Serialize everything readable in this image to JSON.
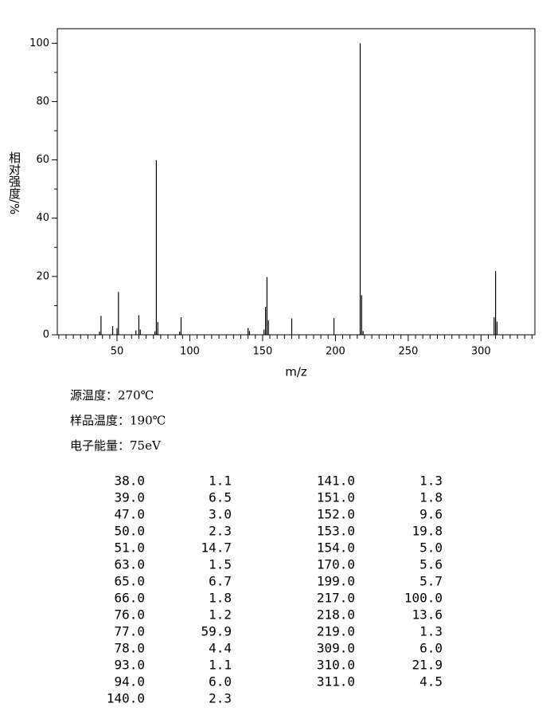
{
  "chart_data": {
    "type": "stick",
    "x_label": "m/z",
    "y_label": "相对强度/%",
    "x": [
      38,
      39,
      47,
      50,
      51,
      63,
      65,
      66,
      76,
      77,
      78,
      93,
      94,
      140,
      141,
      151,
      152,
      153,
      154,
      170,
      199,
      217,
      218,
      219,
      309,
      310,
      311
    ],
    "values": [
      1.1,
      6.5,
      3.0,
      2.3,
      14.7,
      1.5,
      6.7,
      1.8,
      1.2,
      59.9,
      4.4,
      1.1,
      6.0,
      2.3,
      1.3,
      1.8,
      9.6,
      19.8,
      5.0,
      5.6,
      5.7,
      100.0,
      13.6,
      1.3,
      6.0,
      21.9,
      4.5
    ],
    "color": "#000000",
    "xlim": [
      9,
      337
    ],
    "xticks": [
      50,
      100,
      150,
      200,
      250,
      300
    ],
    "xticks_minor": [
      10,
      15,
      20,
      25,
      30,
      35,
      40,
      45,
      55,
      60,
      65,
      70,
      75,
      80,
      85,
      90,
      95,
      105,
      110,
      115,
      120,
      125,
      130,
      135,
      140,
      145,
      155,
      160,
      165,
      170,
      175,
      180,
      185,
      190,
      195,
      205,
      210,
      215,
      220,
      225,
      230,
      235,
      240,
      245,
      255,
      260,
      265,
      270,
      275,
      280,
      285,
      290,
      295,
      305,
      310,
      315,
      320,
      325,
      330,
      335
    ],
    "ylim": [
      0,
      105
    ],
    "yticks": [
      0,
      20,
      40,
      60,
      80,
      100
    ],
    "yticks_minor": [
      10,
      30,
      50,
      70,
      90
    ]
  },
  "conditions": [
    "源温度：270℃",
    "样品温度：190℃",
    "电子能量：75eV"
  ],
  "peak_table": {
    "columns": [
      [
        [
          "38.0",
          "1.1"
        ],
        [
          "39.0",
          "6.5"
        ],
        [
          "47.0",
          "3.0"
        ],
        [
          "50.0",
          "2.3"
        ],
        [
          "51.0",
          "14.7"
        ],
        [
          "63.0",
          "1.5"
        ],
        [
          "65.0",
          "6.7"
        ],
        [
          "66.0",
          "1.8"
        ],
        [
          "76.0",
          "1.2"
        ],
        [
          "77.0",
          "59.9"
        ],
        [
          "78.0",
          "4.4"
        ],
        [
          "93.0",
          "1.1"
        ],
        [
          "94.0",
          "6.0"
        ],
        [
          "140.0",
          "2.3"
        ]
      ],
      [
        [
          "141.0",
          "1.3"
        ],
        [
          "151.0",
          "1.8"
        ],
        [
          "152.0",
          "9.6"
        ],
        [
          "153.0",
          "19.8"
        ],
        [
          "154.0",
          "5.0"
        ],
        [
          "170.0",
          "5.6"
        ],
        [
          "199.0",
          "5.7"
        ],
        [
          "217.0",
          "100.0"
        ],
        [
          "218.0",
          "13.6"
        ],
        [
          "219.0",
          "1.3"
        ],
        [
          "309.0",
          "6.0"
        ],
        [
          "310.0",
          "21.9"
        ],
        [
          "311.0",
          "4.5"
        ]
      ]
    ]
  }
}
